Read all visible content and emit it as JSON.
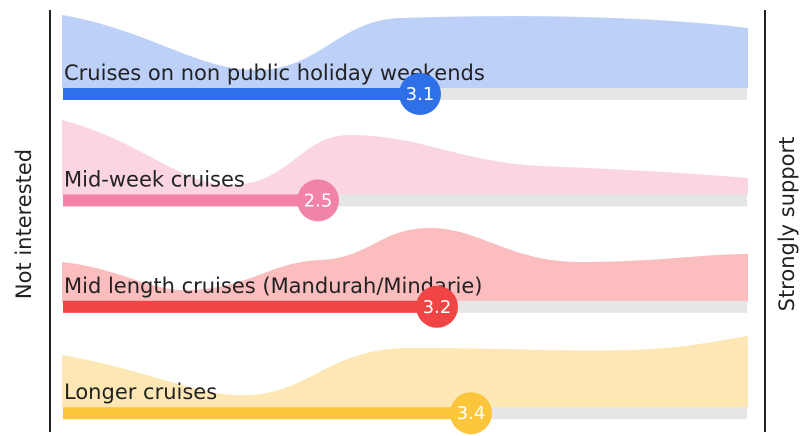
{
  "chart_data": {
    "type": "bar",
    "categories": [
      "Cruises on non public holiday weekends",
      "Mid-week cruises",
      "Mid length cruises (Mandurah/Mindarie)",
      "Longer cruises"
    ],
    "values": [
      3.1,
      2.5,
      3.2,
      3.4
    ],
    "colors": [
      "#2f6fe8",
      "#f283a8",
      "#f04545",
      "#fbc53c"
    ],
    "xlim": [
      1,
      5
    ],
    "x_label_left": "Not interested",
    "x_label_right": "Strongly support"
  }
}
